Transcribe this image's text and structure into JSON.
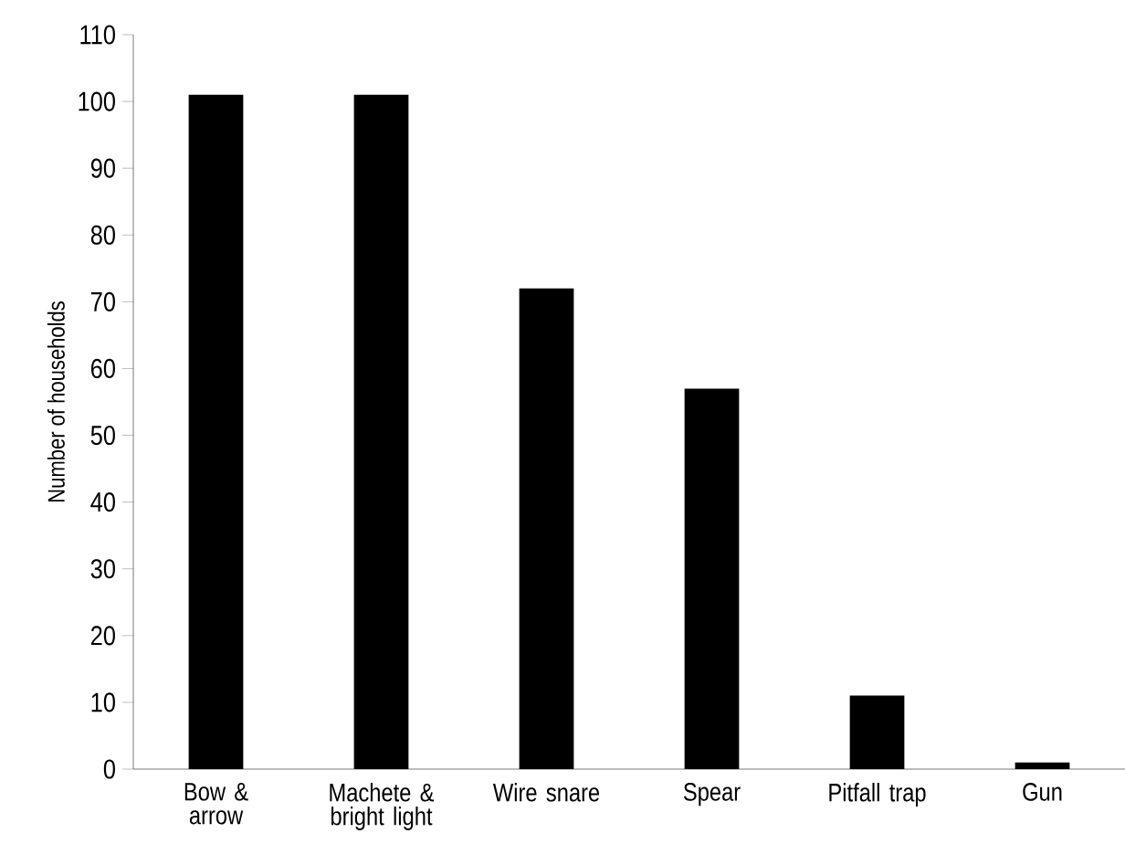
{
  "chart_data": {
    "type": "bar",
    "ylabel": "Number of households",
    "categories": [
      "Bow & arrow",
      "Machete & bright light",
      "Wire snare",
      "Spear",
      "Pitfall trap",
      "Gun"
    ],
    "values": [
      101,
      101,
      72,
      57,
      11,
      1
    ],
    "color": "#000000",
    "ylim": [
      0,
      110
    ],
    "yticks": [
      0,
      10,
      20,
      30,
      40,
      50,
      60,
      70,
      80,
      90,
      100,
      110
    ],
    "grid": false
  }
}
